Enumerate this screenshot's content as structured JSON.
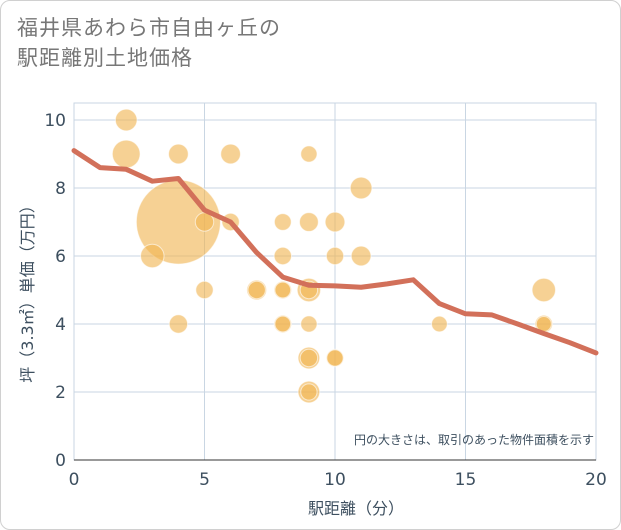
{
  "title_lines": [
    "福井県あわら市自由ヶ丘の",
    "駅距離別土地価格"
  ],
  "chart_data": {
    "type": "scatter",
    "title": "福井県あわら市自由ヶ丘の駅距離別土地価格",
    "xlabel": "駅距離（分）",
    "ylabel": "坪（3.3㎡）単価（万円）",
    "xlim": [
      0,
      20
    ],
    "ylim": [
      0,
      10.5
    ],
    "xticks": [
      "0",
      "5",
      "10",
      "15",
      "20"
    ],
    "yticks": [
      "0",
      "2",
      "4",
      "6",
      "8",
      "10"
    ],
    "grid": true,
    "note": "円の大きさは、取引のあった物件面積を示す",
    "colors": {
      "bubble": "#f0b452",
      "line": "#d2705a",
      "grid": "#c9d6e3"
    },
    "bubbles": [
      {
        "x": 2,
        "y": 10,
        "size": 2
      },
      {
        "x": 2,
        "y": 9,
        "size": 4
      },
      {
        "x": 3,
        "y": 6,
        "size": 2.5
      },
      {
        "x": 4,
        "y": 9,
        "size": 1.5
      },
      {
        "x": 4,
        "y": 7,
        "size": 55
      },
      {
        "x": 4,
        "y": 4,
        "size": 1.2
      },
      {
        "x": 5,
        "y": 7,
        "size": 1.2
      },
      {
        "x": 5,
        "y": 5,
        "size": 1
      },
      {
        "x": 6,
        "y": 9,
        "size": 1.5
      },
      {
        "x": 6,
        "y": 7,
        "size": 1
      },
      {
        "x": 7,
        "y": 5,
        "size": 1.5
      },
      {
        "x": 7,
        "y": 5,
        "size": 1
      },
      {
        "x": 8,
        "y": 7,
        "size": 0.9
      },
      {
        "x": 8,
        "y": 6,
        "size": 1
      },
      {
        "x": 8,
        "y": 5,
        "size": 1
      },
      {
        "x": 8,
        "y": 5,
        "size": 0.7
      },
      {
        "x": 8,
        "y": 4,
        "size": 1
      },
      {
        "x": 8,
        "y": 4,
        "size": 0.7
      },
      {
        "x": 9,
        "y": 9,
        "size": 0.8
      },
      {
        "x": 9,
        "y": 7,
        "size": 1.3
      },
      {
        "x": 9,
        "y": 5,
        "size": 2.5
      },
      {
        "x": 9,
        "y": 5,
        "size": 1
      },
      {
        "x": 9,
        "y": 4,
        "size": 0.8
      },
      {
        "x": 9,
        "y": 3,
        "size": 2
      },
      {
        "x": 9,
        "y": 3,
        "size": 1
      },
      {
        "x": 9,
        "y": 2,
        "size": 2
      },
      {
        "x": 9,
        "y": 2,
        "size": 0.8
      },
      {
        "x": 10,
        "y": 7,
        "size": 1.5
      },
      {
        "x": 10,
        "y": 6,
        "size": 1
      },
      {
        "x": 10,
        "y": 3,
        "size": 1
      },
      {
        "x": 10,
        "y": 3,
        "size": 0.8
      },
      {
        "x": 11,
        "y": 8,
        "size": 2
      },
      {
        "x": 11,
        "y": 6,
        "size": 1.5
      },
      {
        "x": 14,
        "y": 4,
        "size": 0.7
      },
      {
        "x": 18,
        "y": 5,
        "size": 2.5
      },
      {
        "x": 18,
        "y": 4,
        "size": 1
      },
      {
        "x": 18,
        "y": 4,
        "size": 0.6
      }
    ],
    "line": {
      "x": [
        0,
        1,
        2,
        3,
        4,
        5,
        6,
        7,
        8,
        9,
        10,
        11,
        12,
        13,
        14,
        15,
        16,
        17,
        18,
        19,
        20
      ],
      "y": [
        9.1,
        8.6,
        8.55,
        8.2,
        8.28,
        7.35,
        7.0,
        6.1,
        5.38,
        5.14,
        5.12,
        5.08,
        5.18,
        5.3,
        4.6,
        4.3,
        4.27,
        4.0,
        3.72,
        3.45,
        3.15
      ]
    }
  }
}
